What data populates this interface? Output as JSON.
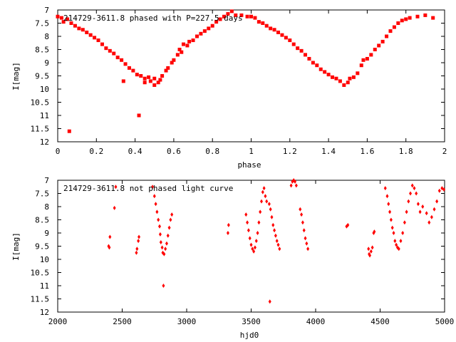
{
  "colors": {
    "marker": "#ff0000",
    "axis": "#000000",
    "background": "#ffffff"
  },
  "chart_data": [
    {
      "type": "scatter",
      "title": "214729-3611.8 phased with P=227.5 days",
      "xlabel": "phase",
      "ylabel": "I[mag]",
      "xlim": [
        0,
        2
      ],
      "ylim": [
        7,
        12
      ],
      "y_inverted": true,
      "grid": false,
      "xticks": [
        0,
        0.2,
        0.4,
        0.6,
        0.8,
        1,
        1.2,
        1.4,
        1.6,
        1.8,
        2
      ],
      "xtick_labels": [
        "0",
        "0.2",
        "0.4",
        "0.6",
        "0.8",
        "1",
        "1.2",
        "1.4",
        "1.6",
        "1.8",
        "2"
      ],
      "yticks": [
        7,
        7.5,
        8,
        8.5,
        9,
        9.5,
        10,
        10.5,
        11,
        11.5,
        12
      ],
      "ytick_labels": [
        "7",
        "7.5",
        "8",
        "8.5",
        "9",
        "9.5",
        "10",
        "10.5",
        "11",
        "11.5",
        "12"
      ],
      "marker": "square",
      "series": [
        {
          "points": [
            [
              0.0,
              7.25
            ],
            [
              0.02,
              7.3
            ],
            [
              0.03,
              7.45
            ],
            [
              0.05,
              7.35
            ],
            [
              0.07,
              7.5
            ],
            [
              0.09,
              7.6
            ],
            [
              0.11,
              7.7
            ],
            [
              0.13,
              7.75
            ],
            [
              0.15,
              7.85
            ],
            [
              0.17,
              7.95
            ],
            [
              0.19,
              8.05
            ],
            [
              0.21,
              8.15
            ],
            [
              0.23,
              8.3
            ],
            [
              0.25,
              8.45
            ],
            [
              0.27,
              8.55
            ],
            [
              0.29,
              8.65
            ],
            [
              0.31,
              8.8
            ],
            [
              0.33,
              8.9
            ],
            [
              0.35,
              9.05
            ],
            [
              0.37,
              9.2
            ],
            [
              0.39,
              9.3
            ],
            [
              0.41,
              9.45
            ],
            [
              0.43,
              9.5
            ],
            [
              0.45,
              9.6
            ],
            [
              0.47,
              9.55
            ],
            [
              0.48,
              9.7
            ],
            [
              0.5,
              9.6
            ],
            [
              0.5,
              9.85
            ],
            [
              0.52,
              9.75
            ],
            [
              0.53,
              9.65
            ],
            [
              0.54,
              9.5
            ],
            [
              0.56,
              9.3
            ],
            [
              0.57,
              9.2
            ],
            [
              0.59,
              9.0
            ],
            [
              0.6,
              8.9
            ],
            [
              0.62,
              8.7
            ],
            [
              0.63,
              8.5
            ],
            [
              0.64,
              8.6
            ],
            [
              0.65,
              8.3
            ],
            [
              0.67,
              8.35
            ],
            [
              0.68,
              8.2
            ],
            [
              0.7,
              8.15
            ],
            [
              0.72,
              8.0
            ],
            [
              0.74,
              7.9
            ],
            [
              0.76,
              7.8
            ],
            [
              0.78,
              7.7
            ],
            [
              0.8,
              7.6
            ],
            [
              0.82,
              7.45
            ],
            [
              0.84,
              7.35
            ],
            [
              0.86,
              7.25
            ],
            [
              0.88,
              7.15
            ],
            [
              0.9,
              7.05
            ],
            [
              0.92,
              7.2
            ],
            [
              0.95,
              7.2
            ],
            [
              0.98,
              7.25
            ],
            [
              1.0,
              7.25
            ],
            [
              1.02,
              7.3
            ],
            [
              1.04,
              7.45
            ],
            [
              1.06,
              7.5
            ],
            [
              1.08,
              7.6
            ],
            [
              1.1,
              7.7
            ],
            [
              1.12,
              7.75
            ],
            [
              1.14,
              7.85
            ],
            [
              1.16,
              7.95
            ],
            [
              1.18,
              8.05
            ],
            [
              1.2,
              8.15
            ],
            [
              1.22,
              8.3
            ],
            [
              1.24,
              8.45
            ],
            [
              1.26,
              8.55
            ],
            [
              1.28,
              8.7
            ],
            [
              1.3,
              8.85
            ],
            [
              1.32,
              9.0
            ],
            [
              1.34,
              9.1
            ],
            [
              1.36,
              9.25
            ],
            [
              1.38,
              9.35
            ],
            [
              1.4,
              9.45
            ],
            [
              1.42,
              9.55
            ],
            [
              1.44,
              9.6
            ],
            [
              1.46,
              9.7
            ],
            [
              1.48,
              9.85
            ],
            [
              1.5,
              9.75
            ],
            [
              1.51,
              9.6
            ],
            [
              1.53,
              9.55
            ],
            [
              1.55,
              9.4
            ],
            [
              1.57,
              9.1
            ],
            [
              1.58,
              8.9
            ],
            [
              1.6,
              8.85
            ],
            [
              1.62,
              8.7
            ],
            [
              1.64,
              8.5
            ],
            [
              1.66,
              8.35
            ],
            [
              1.68,
              8.2
            ],
            [
              1.7,
              8.0
            ],
            [
              1.72,
              7.8
            ],
            [
              1.74,
              7.65
            ],
            [
              1.76,
              7.5
            ],
            [
              1.78,
              7.4
            ],
            [
              1.8,
              7.35
            ],
            [
              1.82,
              7.3
            ],
            [
              1.86,
              7.25
            ],
            [
              1.9,
              7.2
            ],
            [
              1.94,
              7.3
            ],
            [
              0.06,
              11.6
            ],
            [
              0.34,
              9.7
            ],
            [
              0.42,
              11.0
            ],
            [
              0.45,
              9.75
            ]
          ]
        }
      ]
    },
    {
      "type": "scatter",
      "title": "214729-3611.8 not phased light curve",
      "xlabel": "hjd0",
      "ylabel": "I[mag]",
      "xlim": [
        2000,
        5000
      ],
      "ylim": [
        7,
        12
      ],
      "y_inverted": true,
      "grid": false,
      "xticks": [
        2000,
        2500,
        3000,
        3500,
        4000,
        4500,
        5000
      ],
      "xtick_labels": [
        "2000",
        "2500",
        "3000",
        "3500",
        "4000",
        "4500",
        "5000"
      ],
      "yticks": [
        7,
        7.5,
        8,
        8.5,
        9,
        9.5,
        10,
        10.5,
        11,
        11.5,
        12
      ],
      "ytick_labels": [
        "7",
        "7.5",
        "8",
        "8.5",
        "9",
        "9.5",
        "10",
        "10.5",
        "11",
        "11.5",
        "12"
      ],
      "marker": "diamond",
      "series": [
        {
          "points": [
            [
              2395,
              9.5
            ],
            [
              2400,
              9.55
            ],
            [
              2405,
              9.15
            ],
            [
              2440,
              8.05
            ],
            [
              2450,
              7.25
            ],
            [
              2610,
              9.75
            ],
            [
              2615,
              9.6
            ],
            [
              2625,
              9.3
            ],
            [
              2630,
              9.15
            ],
            [
              2735,
              7.25
            ],
            [
              2750,
              7.6
            ],
            [
              2760,
              7.9
            ],
            [
              2770,
              8.2
            ],
            [
              2780,
              8.5
            ],
            [
              2790,
              8.75
            ],
            [
              2795,
              9.05
            ],
            [
              2800,
              9.35
            ],
            [
              2810,
              9.55
            ],
            [
              2815,
              9.75
            ],
            [
              2825,
              9.8
            ],
            [
              2835,
              9.6
            ],
            [
              2845,
              9.4
            ],
            [
              2855,
              9.1
            ],
            [
              2865,
              8.8
            ],
            [
              2875,
              8.5
            ],
            [
              2885,
              8.3
            ],
            [
              2820,
              11.0
            ],
            [
              3320,
              9.0
            ],
            [
              3325,
              8.7
            ],
            [
              3460,
              8.3
            ],
            [
              3470,
              8.6
            ],
            [
              3480,
              8.9
            ],
            [
              3490,
              9.2
            ],
            [
              3500,
              9.45
            ],
            [
              3510,
              9.6
            ],
            [
              3520,
              9.7
            ],
            [
              3530,
              9.55
            ],
            [
              3540,
              9.3
            ],
            [
              3550,
              9.0
            ],
            [
              3560,
              8.6
            ],
            [
              3570,
              8.2
            ],
            [
              3580,
              7.8
            ],
            [
              3590,
              7.45
            ],
            [
              3600,
              7.3
            ],
            [
              3610,
              7.6
            ],
            [
              3620,
              7.8
            ],
            [
              3640,
              7.9
            ],
            [
              3650,
              8.1
            ],
            [
              3660,
              8.4
            ],
            [
              3670,
              8.7
            ],
            [
              3680,
              8.9
            ],
            [
              3690,
              9.1
            ],
            [
              3700,
              9.3
            ],
            [
              3710,
              9.45
            ],
            [
              3720,
              9.6
            ],
            [
              3645,
              11.6
            ],
            [
              3810,
              7.2
            ],
            [
              3820,
              7.05
            ],
            [
              3830,
              7.0
            ],
            [
              3840,
              7.05
            ],
            [
              3850,
              7.2
            ],
            [
              3880,
              8.1
            ],
            [
              3890,
              8.3
            ],
            [
              3900,
              8.6
            ],
            [
              3910,
              8.9
            ],
            [
              3920,
              9.2
            ],
            [
              3930,
              9.4
            ],
            [
              3940,
              9.6
            ],
            [
              4240,
              8.75
            ],
            [
              4250,
              8.7
            ],
            [
              4410,
              9.6
            ],
            [
              4415,
              9.8
            ],
            [
              4420,
              9.85
            ],
            [
              4430,
              9.7
            ],
            [
              4440,
              9.55
            ],
            [
              4450,
              9.0
            ],
            [
              4455,
              8.95
            ],
            [
              4540,
              7.3
            ],
            [
              4555,
              7.6
            ],
            [
              4565,
              7.9
            ],
            [
              4575,
              8.2
            ],
            [
              4585,
              8.5
            ],
            [
              4595,
              8.8
            ],
            [
              4605,
              9.0
            ],
            [
              4615,
              9.3
            ],
            [
              4625,
              9.45
            ],
            [
              4635,
              9.55
            ],
            [
              4645,
              9.6
            ],
            [
              4660,
              9.3
            ],
            [
              4675,
              9.0
            ],
            [
              4690,
              8.6
            ],
            [
              4705,
              8.2
            ],
            [
              4720,
              7.8
            ],
            [
              4735,
              7.5
            ],
            [
              4750,
              7.2
            ],
            [
              4765,
              7.3
            ],
            [
              4780,
              7.5
            ],
            [
              4795,
              7.9
            ],
            [
              4810,
              8.2
            ],
            [
              4830,
              8.0
            ],
            [
              4860,
              8.25
            ],
            [
              4880,
              8.6
            ],
            [
              4900,
              8.4
            ],
            [
              4920,
              8.1
            ],
            [
              4940,
              7.8
            ],
            [
              4960,
              7.4
            ],
            [
              4980,
              7.3
            ],
            [
              4995,
              7.35
            ]
          ]
        }
      ]
    }
  ]
}
